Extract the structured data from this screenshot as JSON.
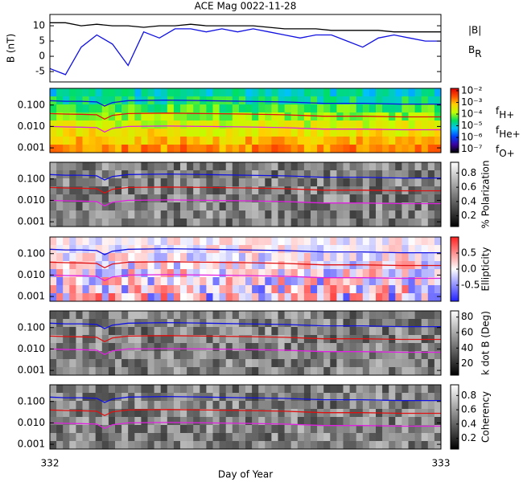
{
  "chart_data": [
    {
      "type": "line",
      "title": "ACE Mag 0022-11-28",
      "y_label": "B (nT)",
      "x": [
        332,
        332.04,
        332.08,
        332.12,
        332.16,
        332.2,
        332.24,
        332.28,
        332.32,
        332.36,
        332.4,
        332.44,
        332.48,
        332.52,
        332.56,
        332.6,
        332.64,
        332.68,
        332.72,
        332.76,
        332.8,
        332.84,
        332.88,
        332.92,
        332.96,
        333
      ],
      "series": [
        {
          "name": "|B|",
          "color": "#000000",
          "values": [
            11,
            11,
            10,
            10.5,
            10,
            10,
            9.5,
            10,
            10,
            10.5,
            10,
            10,
            10,
            10,
            9.5,
            9,
            9,
            9,
            8.5,
            8.5,
            8.5,
            8.5,
            8,
            8,
            8,
            8
          ]
        },
        {
          "name": "BR",
          "color": "#1010e0",
          "values": [
            -4,
            -6,
            3,
            7,
            4,
            -3,
            8,
            6,
            9,
            9,
            8,
            9,
            8,
            9,
            8,
            7,
            6,
            7,
            7,
            5,
            3,
            6,
            7,
            6,
            5,
            5
          ]
        }
      ],
      "xlim": [
        332,
        333
      ],
      "ylim": [
        -8.4,
        13.7
      ],
      "yticks": [
        -5,
        0,
        5,
        10
      ]
    },
    {
      "type": "spectrogram",
      "log_y": true,
      "x": [
        332,
        332.04,
        332.08,
        332.12,
        332.14,
        332.16,
        332.2,
        332.3,
        332.4,
        332.5,
        332.6,
        332.7,
        332.8,
        332.9,
        333
      ],
      "series": [
        {
          "name": "fH+",
          "color": "#1010e0",
          "values": [
            0.16,
            0.15,
            0.15,
            0.14,
            0.09,
            0.13,
            0.16,
            0.17,
            0.16,
            0.15,
            0.14,
            0.12,
            0.12,
            0.11,
            0.11
          ]
        },
        {
          "name": "fHe+",
          "color": "#e01010",
          "values": [
            0.04,
            0.038,
            0.037,
            0.035,
            0.022,
            0.033,
            0.04,
            0.042,
            0.04,
            0.038,
            0.035,
            0.03,
            0.03,
            0.028,
            0.028
          ]
        },
        {
          "name": "fO+",
          "color": "#e020e0",
          "values": [
            0.01,
            0.0095,
            0.0093,
            0.0088,
            0.0055,
            0.0082,
            0.01,
            0.0105,
            0.01,
            0.0095,
            0.0088,
            0.0075,
            0.0075,
            0.007,
            0.007
          ]
        }
      ],
      "xlim": [
        332,
        333
      ],
      "ylim": [
        0.0006,
        0.6
      ],
      "yticks": [
        {
          "value": 0.001,
          "label": "0.001"
        },
        {
          "value": 0.01,
          "label": "0.010"
        },
        {
          "value": 0.1,
          "label": "0.100"
        }
      ],
      "colorbar": {
        "colors": [
          "#000000",
          "#3a00a0",
          "#0040ff",
          "#00c0ff",
          "#00e060",
          "#c0ff00",
          "#ffd000",
          "#ff5000",
          "#e00000"
        ],
        "lim": [
          -7.3,
          -1.8
        ],
        "ticks": [
          {
            "value": -7,
            "label": "10⁻⁷"
          },
          {
            "value": -6,
            "label": "10⁻⁶"
          },
          {
            "value": -5,
            "label": "10⁻⁵"
          },
          {
            "value": -4,
            "label": "10⁻⁴"
          },
          {
            "value": -3,
            "label": "10⁻³"
          },
          {
            "value": -2,
            "label": "10⁻²"
          }
        ]
      }
    },
    {
      "type": "spectrogram",
      "log_y": true,
      "x": [
        332,
        332.04,
        332.08,
        332.12,
        332.14,
        332.16,
        332.2,
        332.3,
        332.4,
        332.5,
        332.6,
        332.7,
        332.8,
        332.9,
        333
      ],
      "series": [
        {
          "color": "#1010e0",
          "values": [
            0.16,
            0.15,
            0.15,
            0.14,
            0.09,
            0.13,
            0.16,
            0.17,
            0.16,
            0.15,
            0.14,
            0.12,
            0.12,
            0.11,
            0.11
          ]
        },
        {
          "color": "#e01010",
          "values": [
            0.04,
            0.038,
            0.037,
            0.035,
            0.022,
            0.033,
            0.04,
            0.042,
            0.04,
            0.038,
            0.035,
            0.03,
            0.03,
            0.028,
            0.028
          ]
        },
        {
          "color": "#e020e0",
          "values": [
            0.01,
            0.0095,
            0.0093,
            0.0088,
            0.0055,
            0.0082,
            0.01,
            0.0105,
            0.01,
            0.0095,
            0.0088,
            0.0075,
            0.0075,
            0.007,
            0.007
          ]
        }
      ],
      "xlim": [
        332,
        333
      ],
      "ylim": [
        0.0006,
        0.6
      ],
      "yticks": [
        {
          "value": 0.001,
          "label": "0.001"
        },
        {
          "value": 0.01,
          "label": "0.010"
        },
        {
          "value": 0.1,
          "label": "0.100"
        }
      ],
      "colorbar": {
        "label": "% Polarization",
        "colors": [
          "#000000",
          "#ffffff"
        ],
        "lim": [
          0.05,
          0.95
        ],
        "ticks": [
          0.2,
          0.4,
          0.6,
          0.8
        ]
      }
    },
    {
      "type": "spectrogram",
      "log_y": true,
      "x": [
        332,
        332.04,
        332.08,
        332.12,
        332.14,
        332.16,
        332.2,
        332.3,
        332.4,
        332.5,
        332.6,
        332.7,
        332.8,
        332.9,
        333
      ],
      "series": [
        {
          "color": "#1010e0",
          "values": [
            0.16,
            0.15,
            0.15,
            0.14,
            0.09,
            0.13,
            0.16,
            0.17,
            0.16,
            0.15,
            0.14,
            0.12,
            0.12,
            0.11,
            0.11
          ]
        },
        {
          "color": "#e01010",
          "values": [
            0.04,
            0.038,
            0.037,
            0.035,
            0.022,
            0.033,
            0.04,
            0.042,
            0.04,
            0.038,
            0.035,
            0.03,
            0.03,
            0.028,
            0.028
          ]
        },
        {
          "color": "#e020e0",
          "values": [
            0.01,
            0.0095,
            0.0093,
            0.0088,
            0.0055,
            0.0082,
            0.01,
            0.0105,
            0.01,
            0.0095,
            0.0088,
            0.0075,
            0.0075,
            0.007,
            0.007
          ]
        }
      ],
      "xlim": [
        332,
        333
      ],
      "ylim": [
        0.0006,
        0.6
      ],
      "yticks": [
        {
          "value": 0.001,
          "label": "0.001"
        },
        {
          "value": 0.01,
          "label": "0.010"
        },
        {
          "value": 0.1,
          "label": "0.100"
        }
      ],
      "colorbar": {
        "label": "Ellipticity",
        "colors": [
          "#2020ff",
          "#ffffff",
          "#ff2020"
        ],
        "lim": [
          -1,
          1
        ],
        "ticks": [
          -0.5,
          {
            "value": 0,
            "label": "0.0"
          },
          0.5
        ]
      }
    },
    {
      "type": "spectrogram",
      "log_y": true,
      "x": [
        332,
        332.04,
        332.08,
        332.12,
        332.14,
        332.16,
        332.2,
        332.3,
        332.4,
        332.5,
        332.6,
        332.7,
        332.8,
        332.9,
        333
      ],
      "series": [
        {
          "color": "#1010e0",
          "values": [
            0.16,
            0.15,
            0.15,
            0.14,
            0.09,
            0.13,
            0.16,
            0.17,
            0.16,
            0.15,
            0.14,
            0.12,
            0.12,
            0.11,
            0.11
          ]
        },
        {
          "color": "#e01010",
          "values": [
            0.04,
            0.038,
            0.037,
            0.035,
            0.022,
            0.033,
            0.04,
            0.042,
            0.04,
            0.038,
            0.035,
            0.03,
            0.03,
            0.028,
            0.028
          ]
        },
        {
          "color": "#e020e0",
          "values": [
            0.01,
            0.0095,
            0.0093,
            0.0088,
            0.0055,
            0.0082,
            0.01,
            0.0105,
            0.01,
            0.0095,
            0.0088,
            0.0075,
            0.0075,
            0.007,
            0.007
          ]
        }
      ],
      "xlim": [
        332,
        333
      ],
      "ylim": [
        0.0006,
        0.6
      ],
      "yticks": [
        {
          "value": 0.001,
          "label": "0.001"
        },
        {
          "value": 0.01,
          "label": "0.010"
        },
        {
          "value": 0.1,
          "label": "0.100"
        }
      ],
      "colorbar": {
        "label": "k dot B (Deg)",
        "colors": [
          "#000000",
          "#ffffff"
        ],
        "lim": [
          5,
          88
        ],
        "ticks": [
          20,
          40,
          60,
          80
        ]
      }
    },
    {
      "type": "spectrogram",
      "log_y": true,
      "x_label": "Day of Year",
      "x": [
        332,
        332.04,
        332.08,
        332.12,
        332.14,
        332.16,
        332.2,
        332.3,
        332.4,
        332.5,
        332.6,
        332.7,
        332.8,
        332.9,
        333
      ],
      "series": [
        {
          "color": "#1010e0",
          "values": [
            0.16,
            0.15,
            0.15,
            0.14,
            0.09,
            0.13,
            0.16,
            0.17,
            0.16,
            0.15,
            0.14,
            0.12,
            0.12,
            0.11,
            0.11
          ]
        },
        {
          "color": "#e01010",
          "values": [
            0.04,
            0.038,
            0.037,
            0.035,
            0.022,
            0.033,
            0.04,
            0.042,
            0.04,
            0.038,
            0.035,
            0.03,
            0.03,
            0.028,
            0.028
          ]
        },
        {
          "color": "#e020e0",
          "values": [
            0.01,
            0.0095,
            0.0093,
            0.0088,
            0.0055,
            0.0082,
            0.01,
            0.0105,
            0.01,
            0.0095,
            0.0088,
            0.0075,
            0.0075,
            0.007,
            0.007
          ]
        }
      ],
      "xlim": [
        332,
        333
      ],
      "xticks": [
        332,
        333
      ],
      "ylim": [
        0.0006,
        0.6
      ],
      "yticks": [
        {
          "value": 0.001,
          "label": "0.001"
        },
        {
          "value": 0.01,
          "label": "0.010"
        },
        {
          "value": 0.1,
          "label": "0.100"
        }
      ],
      "colorbar": {
        "label": "Coherency",
        "colors": [
          "#000000",
          "#ffffff"
        ],
        "lim": [
          0.05,
          0.95
        ],
        "ticks": [
          0.2,
          0.4,
          0.6,
          0.8
        ]
      }
    }
  ]
}
